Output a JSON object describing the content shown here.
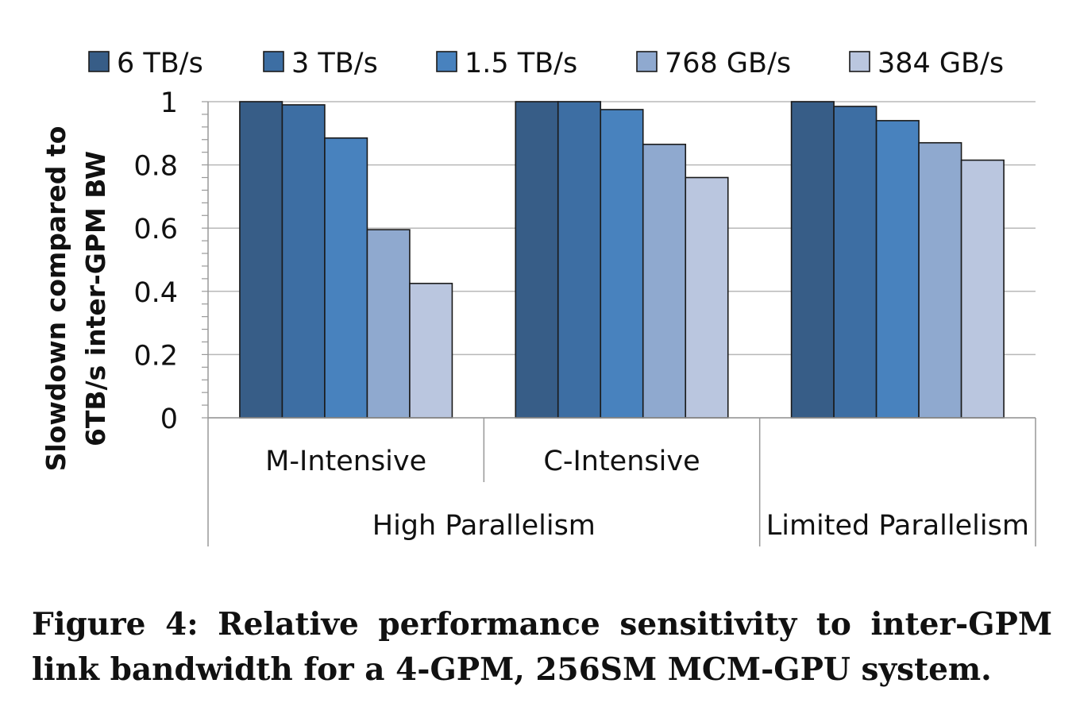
{
  "chart_data": {
    "type": "bar",
    "y_axis_title_lines": [
      "Slowdown compared to",
      "6TB/s inter-GPM BW"
    ],
    "ylim": [
      0,
      1
    ],
    "yticks": [
      0,
      0.2,
      0.4,
      0.6,
      0.8,
      1
    ],
    "ytick_labels": [
      "0",
      "0.2",
      "0.4",
      "0.6",
      "0.8",
      "1"
    ],
    "grid": true,
    "legend_position": "top",
    "categories": [
      "M-Intensive",
      "C-Intensive",
      ""
    ],
    "groups": [
      {
        "label": "High Parallelism",
        "categories": [
          "M-Intensive",
          "C-Intensive"
        ]
      },
      {
        "label": "Limited Parallelism",
        "categories": [
          ""
        ]
      }
    ],
    "series": [
      {
        "name": "6 TB/s",
        "color": "#375D87",
        "values": [
          1.0,
          1.0,
          1.0
        ]
      },
      {
        "name": "3 TB/s",
        "color": "#3D6EA3",
        "values": [
          0.99,
          1.0,
          0.985
        ]
      },
      {
        "name": "1.5 TB/s",
        "color": "#4882BE",
        "values": [
          0.885,
          0.975,
          0.94
        ]
      },
      {
        "name": "768 GB/s",
        "color": "#8FA9CF",
        "values": [
          0.595,
          0.865,
          0.87
        ]
      },
      {
        "name": "384 GB/s",
        "color": "#BAC6DF",
        "values": [
          0.425,
          0.76,
          0.815
        ]
      }
    ]
  },
  "caption": "Figure 4: Relative performance sensitivity to inter-GPM link bandwidth for a 4-GPM, 256SM MCM-GPU system."
}
